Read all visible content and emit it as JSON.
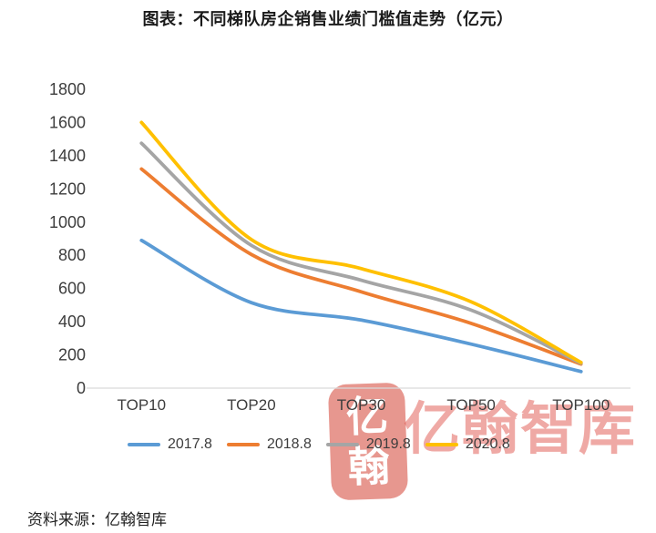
{
  "source_note": "资料来源：亿翰智库",
  "watermark": {
    "seal_top": "亿",
    "seal_bottom": "翰",
    "text": "亿翰智库",
    "color": "#df4b41"
  },
  "chart_data": {
    "type": "line",
    "title": "图表：不同梯队房企销售业绩门槛值走势（亿元）",
    "categories": [
      "TOP10",
      "TOP20",
      "TOP30",
      "TOP50",
      "TOP100"
    ],
    "series": [
      {
        "name": "2017.8",
        "color": "#5B9BD5",
        "values": [
          890,
          515,
          410,
          265,
          100
        ]
      },
      {
        "name": "2018.8",
        "color": "#ED7D31",
        "values": [
          1320,
          805,
          580,
          390,
          145
        ]
      },
      {
        "name": "2019.8",
        "color": "#A5A5A5",
        "values": [
          1475,
          860,
          650,
          470,
          150
        ]
      },
      {
        "name": "2020.8",
        "color": "#FFC000",
        "values": [
          1600,
          895,
          720,
          520,
          155
        ]
      }
    ],
    "xlabel": "",
    "ylabel": "",
    "ylim": [
      0,
      1800
    ],
    "ytick_step": 200,
    "grid": false,
    "legend_position": "bottom",
    "axis_color": "#d9d9d9",
    "tick_color": "#3d3d3d",
    "line_smoothing": true
  }
}
